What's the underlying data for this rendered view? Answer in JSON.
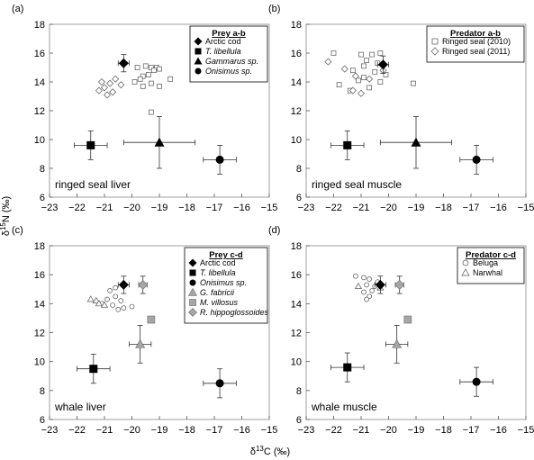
{
  "figure": {
    "xlabel_main": "δ",
    "xlabel_sup": "13",
    "xlabel_rest": "C (‰)",
    "ylabel_main": "δ",
    "ylabel_sup": "15",
    "ylabel_rest": "N (‰)"
  },
  "chart_data": [
    {
      "type": "scatter",
      "panel_tag": "(a)",
      "title": "ringed seal liver",
      "xlim": [
        -23,
        -15
      ],
      "ylim": [
        6,
        18
      ],
      "xticks": [
        "-23",
        "-22",
        "-21",
        "-20",
        "-19",
        "-18",
        "-17",
        "-16",
        "-15"
      ],
      "yticks": [
        "6",
        "8",
        "10",
        "12",
        "14",
        "16",
        "18"
      ],
      "grid": false,
      "legend_position": "top-right",
      "legend_title": "Prey a-b",
      "legend": [
        {
          "label": "Arctic cod",
          "marker": "diamond",
          "italic": false
        },
        {
          "label": "T. libellula",
          "marker": "square",
          "italic": true
        },
        {
          "label": "Gammarus sp.",
          "marker": "triangle",
          "italic": true
        },
        {
          "label": "Onisimus sp.",
          "marker": "circle",
          "italic": true
        }
      ],
      "series": [
        {
          "name": "Arctic cod",
          "marker": "diamond",
          "color": "#000000",
          "points": [
            {
              "x": -20.3,
              "y": 15.3,
              "xerr": 0.2,
              "yerr": 0.6
            }
          ]
        },
        {
          "name": "T. libellula",
          "marker": "square",
          "color": "#000000",
          "points": [
            {
              "x": -21.5,
              "y": 9.6,
              "xerr": 0.6,
              "yerr": 1.0
            }
          ]
        },
        {
          "name": "Gammarus sp.",
          "marker": "triangle",
          "color": "#000000",
          "points": [
            {
              "x": -19.0,
              "y": 9.8,
              "xerr": 1.3,
              "yerr": 1.8
            }
          ]
        },
        {
          "name": "Onisimus sp.",
          "marker": "circle",
          "color": "#000000",
          "points": [
            {
              "x": -16.8,
              "y": 8.6,
              "xerr": 0.6,
              "yerr": 1.0
            }
          ]
        },
        {
          "name": "Ringed seal (2010)",
          "marker": "open-square",
          "color": "#777777",
          "points": [
            {
              "x": -19.1,
              "y": 15.0
            },
            {
              "x": -19.3,
              "y": 15.0
            },
            {
              "x": -19.5,
              "y": 15.1
            },
            {
              "x": -19.8,
              "y": 15.0
            },
            {
              "x": -19.0,
              "y": 14.9
            },
            {
              "x": -19.2,
              "y": 14.8
            },
            {
              "x": -19.4,
              "y": 14.5
            },
            {
              "x": -19.6,
              "y": 14.4
            },
            {
              "x": -19.7,
              "y": 14.2
            },
            {
              "x": -19.9,
              "y": 14.0
            },
            {
              "x": -19.3,
              "y": 13.9
            },
            {
              "x": -19.6,
              "y": 13.7
            },
            {
              "x": -19.0,
              "y": 13.7
            },
            {
              "x": -18.6,
              "y": 14.2
            },
            {
              "x": -19.3,
              "y": 11.9
            }
          ]
        },
        {
          "name": "Ringed seal (2011)",
          "marker": "open-diamond",
          "color": "#777777",
          "points": [
            {
              "x": -20.6,
              "y": 14.2
            },
            {
              "x": -20.8,
              "y": 13.9
            },
            {
              "x": -21.0,
              "y": 13.6
            },
            {
              "x": -20.7,
              "y": 13.3
            },
            {
              "x": -21.2,
              "y": 13.4
            },
            {
              "x": -20.9,
              "y": 13.1
            },
            {
              "x": -20.4,
              "y": 13.8
            },
            {
              "x": -21.1,
              "y": 14.0
            }
          ]
        }
      ]
    },
    {
      "type": "scatter",
      "panel_tag": "(b)",
      "title": "ringed seal muscle",
      "xlim": [
        -23,
        -15
      ],
      "ylim": [
        6,
        18
      ],
      "xticks": [
        "-23",
        "-22",
        "-21",
        "-20",
        "-19",
        "-18",
        "-17",
        "-16",
        "-15"
      ],
      "yticks": [
        "6",
        "8",
        "10",
        "12",
        "14",
        "16",
        "18"
      ],
      "grid": false,
      "legend_position": "top-right",
      "legend_title": "Predator a-b",
      "legend": [
        {
          "label": "Ringed seal (2010)",
          "marker": "open-square",
          "italic": false
        },
        {
          "label": "Ringed seal (2011)",
          "marker": "open-diamond",
          "italic": false
        }
      ],
      "series": [
        {
          "name": "Arctic cod",
          "marker": "diamond",
          "color": "#000000",
          "points": [
            {
              "x": -20.2,
              "y": 15.2,
              "xerr": 0.2,
              "yerr": 0.6
            }
          ]
        },
        {
          "name": "T. libellula",
          "marker": "square",
          "color": "#000000",
          "points": [
            {
              "x": -21.5,
              "y": 9.6,
              "xerr": 0.6,
              "yerr": 1.0
            }
          ]
        },
        {
          "name": "Gammarus sp.",
          "marker": "triangle",
          "color": "#000000",
          "points": [
            {
              "x": -19.0,
              "y": 9.8,
              "xerr": 1.3,
              "yerr": 1.8
            }
          ]
        },
        {
          "name": "Onisimus sp.",
          "marker": "circle",
          "color": "#000000",
          "points": [
            {
              "x": -16.8,
              "y": 8.6,
              "xerr": 0.6,
              "yerr": 1.0
            }
          ]
        },
        {
          "name": "Ringed seal (2010)",
          "marker": "open-square",
          "color": "#777777",
          "points": [
            {
              "x": -22.0,
              "y": 16.0
            },
            {
              "x": -21.0,
              "y": 15.9
            },
            {
              "x": -20.6,
              "y": 15.9
            },
            {
              "x": -20.3,
              "y": 16.0
            },
            {
              "x": -20.8,
              "y": 15.5
            },
            {
              "x": -20.4,
              "y": 15.3
            },
            {
              "x": -20.9,
              "y": 15.1
            },
            {
              "x": -21.3,
              "y": 14.8
            },
            {
              "x": -20.5,
              "y": 14.7
            },
            {
              "x": -20.1,
              "y": 14.5
            },
            {
              "x": -20.9,
              "y": 14.3
            },
            {
              "x": -21.1,
              "y": 14.1
            },
            {
              "x": -20.3,
              "y": 14.0
            },
            {
              "x": -21.4,
              "y": 13.4
            },
            {
              "x": -20.7,
              "y": 13.6
            },
            {
              "x": -21.8,
              "y": 13.8
            },
            {
              "x": -19.1,
              "y": 13.9
            }
          ]
        },
        {
          "name": "Ringed seal (2011)",
          "marker": "open-diamond",
          "color": "#777777",
          "points": [
            {
              "x": -22.2,
              "y": 15.4
            },
            {
              "x": -21.6,
              "y": 14.9
            },
            {
              "x": -21.2,
              "y": 14.4
            },
            {
              "x": -21.3,
              "y": 13.4
            },
            {
              "x": -21.0,
              "y": 13.2
            },
            {
              "x": -20.7,
              "y": 14.2
            },
            {
              "x": -20.2,
              "y": 14.8
            }
          ]
        }
      ]
    },
    {
      "type": "scatter",
      "panel_tag": "(c)",
      "title": "whale liver",
      "xlim": [
        -23,
        -15
      ],
      "ylim": [
        6,
        18
      ],
      "xticks": [
        "-23",
        "-22",
        "-21",
        "-20",
        "-19",
        "-18",
        "-17",
        "-16",
        "-15"
      ],
      "yticks": [
        "6",
        "8",
        "10",
        "12",
        "14",
        "16",
        "18"
      ],
      "grid": false,
      "legend_position": "top-right",
      "legend_title": "Prey c-d",
      "legend": [
        {
          "label": "Arctic cod",
          "marker": "diamond",
          "italic": false
        },
        {
          "label": "T. libellula",
          "marker": "square",
          "italic": true
        },
        {
          "label": "Onisimus sp.",
          "marker": "circle",
          "italic": true
        },
        {
          "label": "G. fabricii",
          "marker": "gray-triangle",
          "italic": true
        },
        {
          "label": "M. villosus",
          "marker": "gray-square",
          "italic": true
        },
        {
          "label": "R. hippoglossoides",
          "marker": "gray-diamond",
          "italic": true
        }
      ],
      "series": [
        {
          "name": "Arctic cod",
          "marker": "diamond",
          "color": "#000000",
          "points": [
            {
              "x": -20.3,
              "y": 15.3,
              "xerr": 0.2,
              "yerr": 0.6
            }
          ]
        },
        {
          "name": "T. libellula",
          "marker": "square",
          "color": "#000000",
          "points": [
            {
              "x": -21.4,
              "y": 9.5,
              "xerr": 0.6,
              "yerr": 1.0
            }
          ]
        },
        {
          "name": "Onisimus sp.",
          "marker": "circle",
          "color": "#000000",
          "points": [
            {
              "x": -16.8,
              "y": 8.5,
              "xerr": 0.6,
              "yerr": 1.0
            }
          ]
        },
        {
          "name": "G. fabricii",
          "marker": "gray-triangle",
          "color": "#999999",
          "points": [
            {
              "x": -19.7,
              "y": 11.2,
              "xerr": 0.4,
              "yerr": 1.3
            }
          ]
        },
        {
          "name": "M. villosus",
          "marker": "gray-square",
          "color": "#999999",
          "points": [
            {
              "x": -19.3,
              "y": 12.9
            }
          ]
        },
        {
          "name": "R. hippoglossoides",
          "marker": "gray-diamond",
          "color": "#999999",
          "points": [
            {
              "x": -19.6,
              "y": 15.3,
              "xerr": 0.15,
              "yerr": 0.6
            }
          ]
        },
        {
          "name": "Beluga",
          "marker": "open-circle",
          "color": "#777777",
          "points": [
            {
              "x": -20.8,
              "y": 14.9
            },
            {
              "x": -20.6,
              "y": 14.5
            },
            {
              "x": -20.4,
              "y": 14.2
            },
            {
              "x": -20.9,
              "y": 14.3
            },
            {
              "x": -21.1,
              "y": 14.0
            },
            {
              "x": -20.7,
              "y": 13.9
            },
            {
              "x": -20.3,
              "y": 13.7
            },
            {
              "x": -20.0,
              "y": 13.8
            },
            {
              "x": -20.5,
              "y": 13.6
            },
            {
              "x": -20.6,
              "y": 15.1
            }
          ]
        },
        {
          "name": "Narwhal",
          "marker": "open-triangle",
          "color": "#777777",
          "points": [
            {
              "x": -21.5,
              "y": 14.3
            },
            {
              "x": -21.3,
              "y": 14.2
            },
            {
              "x": -21.2,
              "y": 14.0
            },
            {
              "x": -21.0,
              "y": 13.9
            }
          ]
        }
      ]
    },
    {
      "type": "scatter",
      "panel_tag": "(d)",
      "title": "whale muscle",
      "xlim": [
        -23,
        -15
      ],
      "ylim": [
        6,
        18
      ],
      "xticks": [
        "-23",
        "-22",
        "-21",
        "-20",
        "-19",
        "-18",
        "-17",
        "-16",
        "-15"
      ],
      "yticks": [
        "6",
        "8",
        "10",
        "12",
        "14",
        "16",
        "18"
      ],
      "grid": false,
      "legend_position": "top-right",
      "legend_title": "Predator c-d",
      "legend": [
        {
          "label": "Beluga",
          "marker": "open-circle",
          "italic": false
        },
        {
          "label": "Narwhal",
          "marker": "open-triangle",
          "italic": false
        }
      ],
      "series": [
        {
          "name": "Arctic cod",
          "marker": "diamond",
          "color": "#000000",
          "points": [
            {
              "x": -20.3,
              "y": 15.3,
              "xerr": 0.2,
              "yerr": 0.6
            }
          ]
        },
        {
          "name": "T. libellula",
          "marker": "square",
          "color": "#000000",
          "points": [
            {
              "x": -21.5,
              "y": 9.6,
              "xerr": 0.6,
              "yerr": 1.0
            }
          ]
        },
        {
          "name": "Onisimus sp.",
          "marker": "circle",
          "color": "#000000",
          "points": [
            {
              "x": -16.8,
              "y": 8.6,
              "xerr": 0.6,
              "yerr": 1.0
            }
          ]
        },
        {
          "name": "G. fabricii",
          "marker": "gray-triangle",
          "color": "#999999",
          "points": [
            {
              "x": -19.7,
              "y": 11.2,
              "xerr": 0.4,
              "yerr": 1.3
            }
          ]
        },
        {
          "name": "M. villosus",
          "marker": "gray-square",
          "color": "#999999",
          "points": [
            {
              "x": -19.3,
              "y": 12.9
            }
          ]
        },
        {
          "name": "R. hippoglossoides",
          "marker": "gray-diamond",
          "color": "#999999",
          "points": [
            {
              "x": -19.6,
              "y": 15.3,
              "xerr": 0.15,
              "yerr": 0.6
            }
          ]
        },
        {
          "name": "Beluga",
          "marker": "open-circle",
          "color": "#777777",
          "points": [
            {
              "x": -21.2,
              "y": 15.9
            },
            {
              "x": -20.9,
              "y": 15.8
            },
            {
              "x": -20.7,
              "y": 15.7
            },
            {
              "x": -20.8,
              "y": 15.3
            },
            {
              "x": -20.5,
              "y": 15.2
            },
            {
              "x": -20.6,
              "y": 14.9
            },
            {
              "x": -20.9,
              "y": 14.8
            },
            {
              "x": -20.7,
              "y": 14.5
            },
            {
              "x": -20.8,
              "y": 14.3
            },
            {
              "x": -20.4,
              "y": 15.5
            }
          ]
        },
        {
          "name": "Narwhal",
          "marker": "open-triangle",
          "color": "#777777",
          "points": [
            {
              "x": -21.1,
              "y": 15.2
            },
            {
              "x": -20.3,
              "y": 15.1
            }
          ]
        }
      ]
    }
  ]
}
